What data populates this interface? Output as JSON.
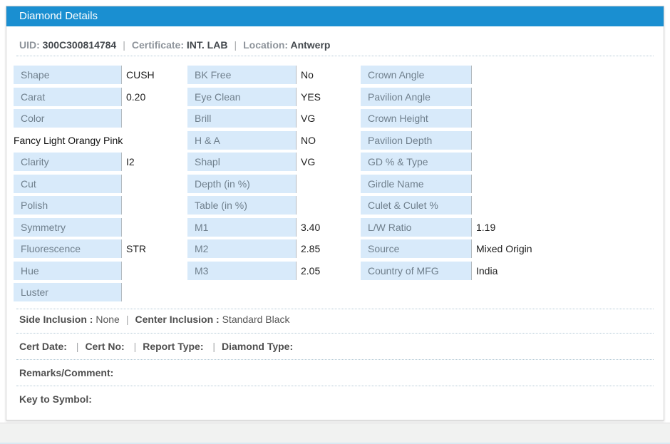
{
  "colors": {
    "header_bg": "#1a8fd1",
    "header_text": "#ffffff",
    "label_cell_bg": "#d8eafa",
    "label_cell_text": "#6f7f8c",
    "value_text": "#1d1d1d",
    "page_footer_bg": "#f1f2f1"
  },
  "header": {
    "title": "Diamond Details"
  },
  "summary": {
    "separator": "|",
    "fields": [
      {
        "label": "UID:",
        "value": "300C300814784"
      },
      {
        "label": "Certificate:",
        "value": "INT. LAB"
      },
      {
        "label": "Location:",
        "value": "Antwerp"
      }
    ]
  },
  "grid": {
    "columns": [
      [
        {
          "label": "Shape",
          "value": "CUSH"
        },
        {
          "label": "Carat",
          "value": "0.20"
        },
        {
          "label": "Color",
          "value": ""
        },
        {
          "full_text": "Fancy Light Orangy Pink"
        },
        {
          "label": "Clarity",
          "value": "I2"
        },
        {
          "label": "Cut",
          "value": ""
        },
        {
          "label": "Polish",
          "value": ""
        },
        {
          "label": "Symmetry",
          "value": ""
        },
        {
          "label": "Fluorescence",
          "value": "STR"
        },
        {
          "label": "Hue",
          "value": ""
        },
        {
          "label": "Luster",
          "value": ""
        }
      ],
      [
        {
          "label": "BK Free",
          "value": "No"
        },
        {
          "label": "Eye Clean",
          "value": "YES"
        },
        {
          "label": "Brill",
          "value": "VG"
        },
        {
          "label": "H & A",
          "value": "NO"
        },
        {
          "label": "Shapl",
          "value": "VG"
        },
        {
          "label": "Depth (in %)",
          "value": ""
        },
        {
          "label": "Table (in %)",
          "value": ""
        },
        {
          "label": "M1",
          "value": "3.40"
        },
        {
          "label": "M2",
          "value": "2.85"
        },
        {
          "label": "M3",
          "value": "2.05"
        }
      ],
      [
        {
          "label": "Crown Angle",
          "value": ""
        },
        {
          "label": "Pavilion Angle",
          "value": ""
        },
        {
          "label": "Crown Height",
          "value": ""
        },
        {
          "label": "Pavilion Depth",
          "value": ""
        },
        {
          "label": "GD % & Type",
          "value": ""
        },
        {
          "label": "Girdle Name",
          "value": ""
        },
        {
          "label": "Culet & Culet %",
          "value": ""
        },
        {
          "label": "L/W Ratio",
          "value": "1.19"
        },
        {
          "label": "Source",
          "value": "Mixed Origin"
        },
        {
          "label": "Country of MFG",
          "value": "India"
        }
      ]
    ]
  },
  "sections": {
    "inclusion": {
      "separator": "|",
      "fields": [
        {
          "label": "Side Inclusion :",
          "value": "None"
        },
        {
          "label": "Center Inclusion :",
          "value": "Standard Black"
        }
      ]
    },
    "certificate": {
      "separator": "|",
      "fields": [
        {
          "label": "Cert Date:",
          "value": ""
        },
        {
          "label": "Cert No:",
          "value": ""
        },
        {
          "label": "Report Type:",
          "value": ""
        },
        {
          "label": "Diamond Type:",
          "value": ""
        }
      ]
    },
    "remarks_label": "Remarks/Comment:",
    "key_to_symbol_label": "Key to Symbol:"
  }
}
